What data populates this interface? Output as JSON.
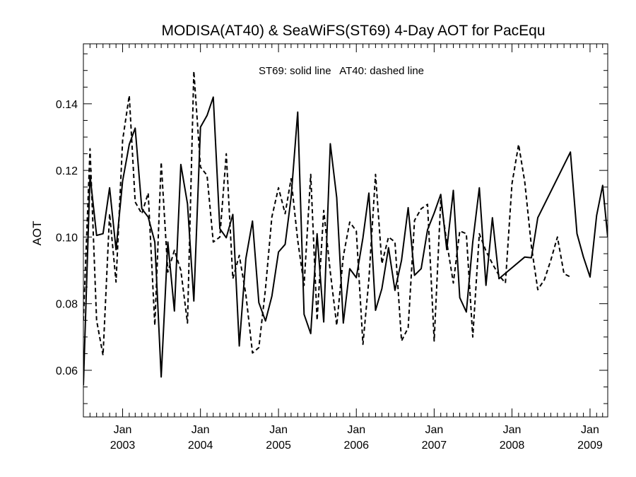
{
  "chart_data": {
    "type": "line",
    "title": "MODISA(AT40) & SeaWiFS(ST69) 4-Day AOT for PacEqu",
    "annotation": "ST69: solid line   AT40: dashed line",
    "xlabel": "",
    "ylabel": "AOT",
    "xlim": [
      "2002-07-01",
      "2009-03-25"
    ],
    "ylim": [
      0.046,
      0.158
    ],
    "y_ticks": [
      0.06,
      0.08,
      0.1,
      0.12,
      0.14
    ],
    "y_tick_labels": [
      "0.06",
      "0.08",
      "0.10",
      "0.12",
      "0.14"
    ],
    "y_minor_step": 0.005,
    "x_ticks": [
      {
        "date": "2003-01-01",
        "month": "Jan",
        "year": "2003"
      },
      {
        "date": "2004-01-01",
        "month": "Jan",
        "year": "2004"
      },
      {
        "date": "2005-01-01",
        "month": "Jan",
        "year": "2005"
      },
      {
        "date": "2006-01-01",
        "month": "Jan",
        "year": "2006"
      },
      {
        "date": "2007-01-01",
        "month": "Jan",
        "year": "2007"
      },
      {
        "date": "2008-01-01",
        "month": "Jan",
        "year": "2008"
      },
      {
        "date": "2009-01-01",
        "month": "Jan",
        "year": "2009"
      }
    ],
    "x_minor": "monthly",
    "grid": false,
    "series": [
      {
        "name": "ST69",
        "style": "solid",
        "points": [
          [
            "2002-07-01",
            0.0555
          ],
          [
            "2002-08-01",
            0.1185
          ],
          [
            "2002-09-01",
            0.1005
          ],
          [
            "2002-10-01",
            0.101
          ],
          [
            "2002-11-01",
            0.1148
          ],
          [
            "2002-12-01",
            0.0962
          ],
          [
            "2003-01-01",
            0.1168
          ],
          [
            "2003-02-01",
            0.1278
          ],
          [
            "2003-03-01",
            0.1327
          ],
          [
            "2003-04-01",
            0.1085
          ],
          [
            "2003-05-01",
            0.106
          ],
          [
            "2003-06-01",
            0.0985
          ],
          [
            "2003-07-01",
            0.058
          ],
          [
            "2003-08-01",
            0.0985
          ],
          [
            "2003-09-01",
            0.0778
          ],
          [
            "2003-10-01",
            0.1218
          ],
          [
            "2003-11-01",
            0.11
          ],
          [
            "2003-12-01",
            0.0808
          ],
          [
            "2004-01-01",
            0.133
          ],
          [
            "2004-02-01",
            0.1365
          ],
          [
            "2004-03-01",
            0.142
          ],
          [
            "2004-04-01",
            0.1025
          ],
          [
            "2004-05-01",
            0.0998
          ],
          [
            "2004-06-01",
            0.1068
          ],
          [
            "2004-07-01",
            0.0673
          ],
          [
            "2004-08-01",
            0.0935
          ],
          [
            "2004-09-01",
            0.1048
          ],
          [
            "2004-10-01",
            0.0803
          ],
          [
            "2004-11-01",
            0.0748
          ],
          [
            "2004-12-01",
            0.0822
          ],
          [
            "2005-01-01",
            0.0955
          ],
          [
            "2005-02-01",
            0.0978
          ],
          [
            "2005-03-01",
            0.1118
          ],
          [
            "2005-04-01",
            0.1375
          ],
          [
            "2005-05-01",
            0.0768
          ],
          [
            "2005-06-01",
            0.071
          ],
          [
            "2005-07-01",
            0.101
          ],
          [
            "2005-08-01",
            0.0745
          ],
          [
            "2005-09-01",
            0.128
          ],
          [
            "2005-10-01",
            0.1118
          ],
          [
            "2005-11-01",
            0.0742
          ],
          [
            "2005-12-01",
            0.0905
          ],
          [
            "2006-01-01",
            0.0878
          ],
          [
            "2006-02-01",
            0.0998
          ],
          [
            "2006-03-01",
            0.1132
          ],
          [
            "2006-04-01",
            0.078
          ],
          [
            "2006-05-01",
            0.0845
          ],
          [
            "2006-06-01",
            0.0968
          ],
          [
            "2006-07-01",
            0.084
          ],
          [
            "2006-08-01",
            0.093
          ],
          [
            "2006-09-01",
            0.1088
          ],
          [
            "2006-10-01",
            0.0885
          ],
          [
            "2006-11-01",
            0.0905
          ],
          [
            "2006-12-01",
            0.1022
          ],
          [
            "2007-01-01",
            0.1072
          ],
          [
            "2007-02-01",
            0.1128
          ],
          [
            "2007-03-01",
            0.0962
          ],
          [
            "2007-04-01",
            0.114
          ],
          [
            "2007-05-01",
            0.0818
          ],
          [
            "2007-06-01",
            0.0775
          ],
          [
            "2007-07-01",
            0.0985
          ],
          [
            "2007-08-01",
            0.1148
          ],
          [
            "2007-09-01",
            0.0855
          ],
          [
            "2007-10-01",
            0.1058
          ],
          [
            "2007-11-01",
            0.0875
          ],
          [
            "2008-03-01",
            0.094
          ],
          [
            "2008-04-01",
            0.0938
          ],
          [
            "2008-05-01",
            0.1058
          ],
          [
            "2008-10-01",
            0.1255
          ],
          [
            "2008-11-01",
            0.101
          ],
          [
            "2008-12-01",
            0.094
          ],
          [
            "2009-01-01",
            0.088
          ],
          [
            "2009-02-01",
            0.1065
          ],
          [
            "2009-03-01",
            0.1155
          ],
          [
            "2009-03-25",
            0.1
          ]
        ]
      },
      {
        "name": "AT40",
        "style": "dashed",
        "points": [
          [
            "2002-07-01",
            0.075
          ],
          [
            "2002-08-01",
            0.1265
          ],
          [
            "2002-09-01",
            0.075
          ],
          [
            "2002-10-01",
            0.0645
          ],
          [
            "2002-11-01",
            0.107
          ],
          [
            "2002-12-01",
            0.0865
          ],
          [
            "2003-01-01",
            0.129
          ],
          [
            "2003-02-01",
            0.1425
          ],
          [
            "2003-03-01",
            0.1105
          ],
          [
            "2003-04-01",
            0.107
          ],
          [
            "2003-05-01",
            0.1132
          ],
          [
            "2003-06-01",
            0.0735
          ],
          [
            "2003-07-01",
            0.1225
          ],
          [
            "2003-08-01",
            0.0895
          ],
          [
            "2003-09-01",
            0.096
          ],
          [
            "2003-10-01",
            0.09
          ],
          [
            "2003-11-01",
            0.0742
          ],
          [
            "2003-12-01",
            0.1498
          ],
          [
            "2004-01-01",
            0.121
          ],
          [
            "2004-02-01",
            0.1185
          ],
          [
            "2004-03-01",
            0.0985
          ],
          [
            "2004-04-01",
            0.1
          ],
          [
            "2004-05-01",
            0.125
          ],
          [
            "2004-06-01",
            0.0875
          ],
          [
            "2004-07-01",
            0.0945
          ],
          [
            "2004-08-01",
            0.0828
          ],
          [
            "2004-09-01",
            0.0652
          ],
          [
            "2004-10-01",
            0.0668
          ],
          [
            "2004-11-01",
            0.0845
          ],
          [
            "2004-12-01",
            0.106
          ],
          [
            "2005-01-01",
            0.1148
          ],
          [
            "2005-02-01",
            0.107
          ],
          [
            "2005-03-01",
            0.1175
          ],
          [
            "2005-04-01",
            0.099
          ],
          [
            "2005-05-01",
            0.0855
          ],
          [
            "2005-06-01",
            0.1188
          ],
          [
            "2005-07-01",
            0.075
          ],
          [
            "2005-08-01",
            0.108
          ],
          [
            "2005-09-01",
            0.0895
          ],
          [
            "2005-10-01",
            0.0735
          ],
          [
            "2005-11-01",
            0.0942
          ],
          [
            "2005-12-01",
            0.1045
          ],
          [
            "2006-01-01",
            0.1018
          ],
          [
            "2006-02-01",
            0.0678
          ],
          [
            "2006-03-01",
            0.0872
          ],
          [
            "2006-04-01",
            0.1188
          ],
          [
            "2006-05-01",
            0.092
          ],
          [
            "2006-06-01",
            0.1
          ],
          [
            "2006-07-01",
            0.0985
          ],
          [
            "2006-08-01",
            0.0688
          ],
          [
            "2006-09-01",
            0.0728
          ],
          [
            "2006-10-01",
            0.105
          ],
          [
            "2006-11-01",
            0.1085
          ],
          [
            "2006-12-01",
            0.1098
          ],
          [
            "2007-01-01",
            0.0688
          ],
          [
            "2007-02-01",
            0.111
          ],
          [
            "2007-03-01",
            0.0985
          ],
          [
            "2007-04-01",
            0.0862
          ],
          [
            "2007-05-01",
            0.1018
          ],
          [
            "2007-06-01",
            0.101
          ],
          [
            "2007-07-01",
            0.07
          ],
          [
            "2007-08-01",
            0.101
          ],
          [
            "2007-09-01",
            0.0958
          ],
          [
            "2007-10-01",
            0.092
          ],
          [
            "2007-11-01",
            0.0885
          ],
          [
            "2007-12-01",
            0.0862
          ],
          [
            "2008-01-01",
            0.116
          ],
          [
            "2008-02-01",
            0.1278
          ],
          [
            "2008-03-01",
            0.1165
          ],
          [
            "2008-04-01",
            0.0972
          ],
          [
            "2008-05-01",
            0.0842
          ],
          [
            "2008-06-01",
            0.0872
          ],
          [
            "2008-07-01",
            0.093
          ],
          [
            "2008-08-01",
            0.1
          ],
          [
            "2008-09-01",
            0.089
          ],
          [
            "2008-10-01",
            0.088
          ]
        ]
      }
    ]
  }
}
